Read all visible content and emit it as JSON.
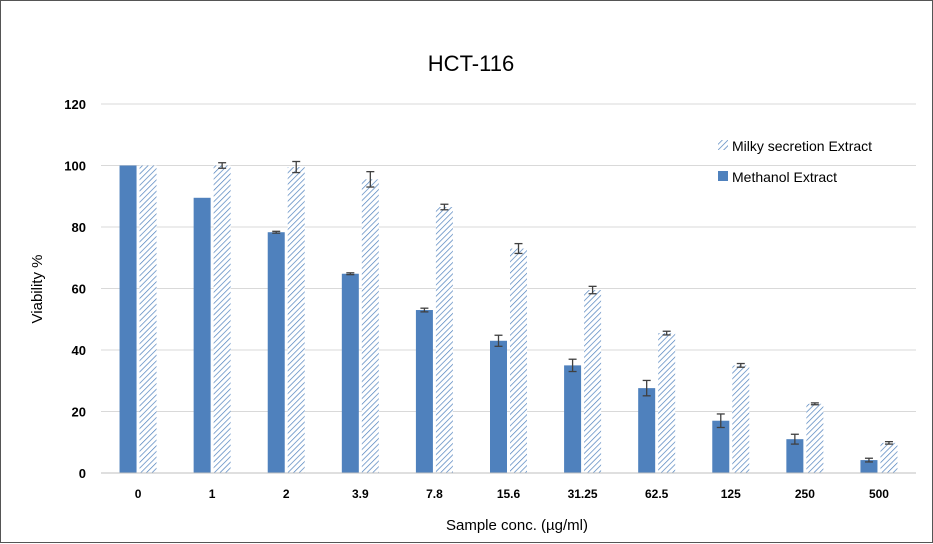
{
  "chart_data": {
    "type": "bar",
    "title": "HCT-116",
    "xlabel": "Sample conc. (µg/ml)",
    "ylabel": "Viability %",
    "ylim": [
      0,
      120
    ],
    "yticks": [
      0,
      20,
      40,
      60,
      80,
      100,
      120
    ],
    "grid": true,
    "legend_position": "top-right",
    "categories": [
      "0",
      "1",
      "2",
      "3.9",
      "7.8",
      "15.6",
      "31.25",
      "62.5",
      "125",
      "250",
      "500"
    ],
    "series": [
      {
        "name": "Methanol Extract",
        "pattern": "solid",
        "color": "#4f81bd",
        "values": [
          100,
          89.5,
          78.3,
          64.8,
          53,
          43,
          35,
          27.6,
          17,
          11,
          4.2
        ],
        "errors": [
          0,
          0,
          0.3,
          0.3,
          0.6,
          1.8,
          2.0,
          2.5,
          2.2,
          1.6,
          0.6
        ]
      },
      {
        "name": "Milky secretion Extract",
        "pattern": "hatched",
        "color": "#4f81bd",
        "values": [
          100,
          100,
          99.5,
          95.5,
          86.5,
          73,
          59.5,
          45.5,
          35,
          22.5,
          9.8
        ],
        "errors": [
          0,
          0.9,
          1.8,
          2.5,
          0.9,
          1.6,
          1.2,
          0.6,
          0.6,
          0.3,
          0.4
        ]
      }
    ]
  }
}
